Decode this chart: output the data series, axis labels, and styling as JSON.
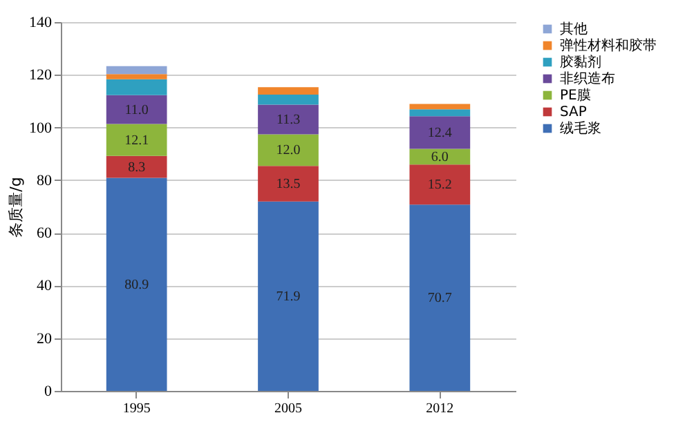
{
  "chart_data": {
    "type": "bar",
    "stacked": true,
    "ylabel": "条质量/g",
    "categories": [
      "1995",
      "2005",
      "2012"
    ],
    "series": [
      {
        "name": "绒毛浆",
        "color": "#3f6fb5",
        "values": [
          80.9,
          71.9,
          70.7
        ],
        "value_labels": [
          "80.9",
          "71.9",
          "70.7"
        ]
      },
      {
        "name": "SAP",
        "color": "#c0393b",
        "values": [
          8.3,
          13.5,
          15.2
        ],
        "value_labels": [
          "8.3",
          "13.5",
          "15.2"
        ]
      },
      {
        "name": "PE膜",
        "color": "#8db53c",
        "values": [
          12.1,
          12.0,
          6.0
        ],
        "value_labels": [
          "12.1",
          "12.0",
          "6.0"
        ]
      },
      {
        "name": "非织造布",
        "color": "#6a4a9a",
        "values": [
          11.0,
          11.3,
          12.4
        ],
        "value_labels": [
          "11.0",
          "11.3",
          "12.4"
        ]
      },
      {
        "name": "胶黏剂",
        "color": "#2fa0c0",
        "values": [
          6.0,
          3.8,
          2.6
        ]
      },
      {
        "name": "弹性材料和胶带",
        "color": "#f0852b",
        "values": [
          2.0,
          2.8,
          2.0
        ]
      },
      {
        "name": "其他",
        "color": "#8ea6d6",
        "values": [
          3.0,
          0.0,
          0.0
        ]
      }
    ],
    "ylim": [
      0,
      140
    ],
    "yticks": [
      0,
      20,
      40,
      60,
      80,
      100,
      120,
      140
    ],
    "grid": "y",
    "legend": "right"
  }
}
